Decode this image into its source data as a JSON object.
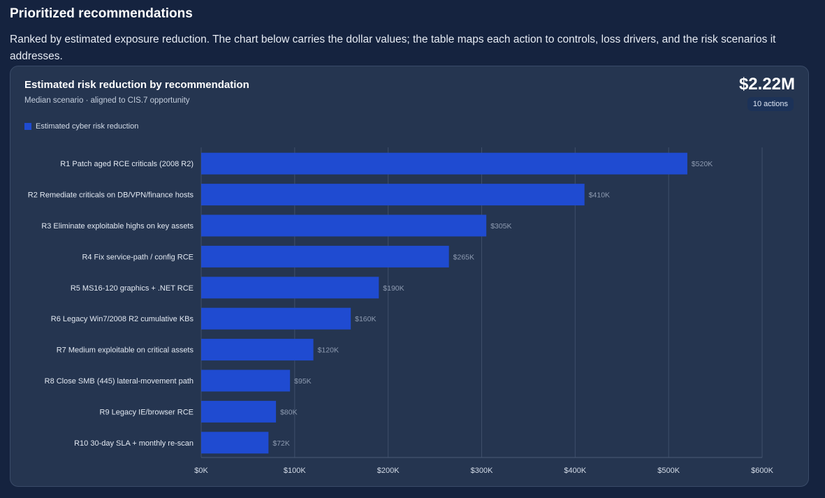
{
  "page": {
    "title": "Prioritized recommendations",
    "description": "Ranked by estimated exposure reduction. The chart below carries the dollar values; the table maps each action to controls, loss drivers, and the risk scenarios it addresses."
  },
  "card": {
    "title": "Estimated risk reduction by recommendation",
    "subtitle": "Median scenario · aligned to CIS.7 opportunity",
    "total_value": "$2.22M",
    "actions_badge": "10 actions"
  },
  "chart_data": {
    "type": "bar",
    "orientation": "horizontal",
    "categories": [
      "R1 Patch aged RCE criticals (2008 R2)",
      "R2 Remediate criticals on DB/VPN/finance hosts",
      "R3 Eliminate exploitable highs on key assets",
      "R4 Fix service-path / config RCE",
      "R5 MS16-120 graphics + .NET RCE",
      "R6 Legacy Win7/2008 R2 cumulative KBs",
      "R7 Medium exploitable on critical assets",
      "R8 Close SMB (445) lateral-movement path",
      "R9 Legacy IE/browser RCE",
      "R10 30-day SLA + monthly re-scan"
    ],
    "series": [
      {
        "name": "Estimated cyber risk reduction",
        "values": [
          520000,
          410000,
          305000,
          265000,
          190000,
          160000,
          120000,
          95000,
          80000,
          72000
        ],
        "labels": [
          "$520K",
          "$410K",
          "$305K",
          "$265K",
          "$190K",
          "$160K",
          "$120K",
          "$95K",
          "$80K",
          "$72K"
        ]
      }
    ],
    "xlim": [
      0,
      600000
    ],
    "xticks": [
      0,
      100000,
      200000,
      300000,
      400000,
      500000,
      600000
    ],
    "xtick_labels": [
      "$0K",
      "$100K",
      "$200K",
      "$300K",
      "$400K",
      "$500K",
      "$600K"
    ],
    "grid": true,
    "legend_position": "top-left",
    "bar_color": "#1f4bd1"
  }
}
